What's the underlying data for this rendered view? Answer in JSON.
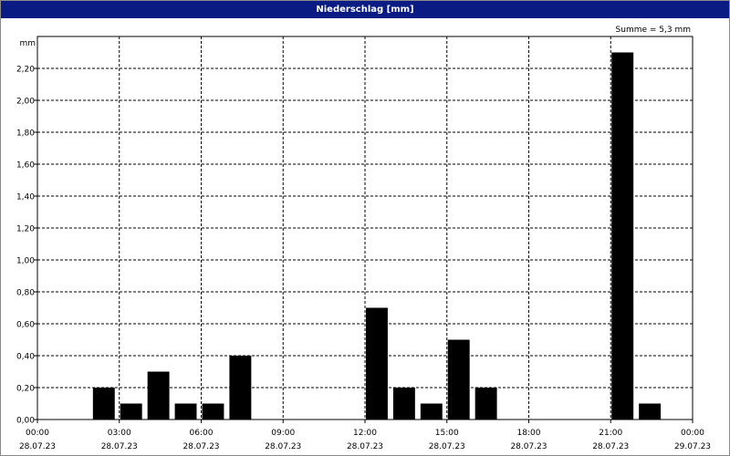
{
  "window": {
    "title": "Niederschlag [mm]"
  },
  "chart_data": {
    "type": "bar",
    "title": "Niederschlag [mm]",
    "annotation": "Summe = 5,3 mm",
    "ylabel": "mm",
    "xlabel": "",
    "ylim": [
      0,
      2.4
    ],
    "xlim": [
      "28.07.23 00:00",
      "29.07.23 00:00"
    ],
    "grid": true,
    "y_ticks": [
      "0,00",
      "0,20",
      "0,40",
      "0,60",
      "0,80",
      "1,00",
      "1,20",
      "1,40",
      "1,60",
      "1,80",
      "2,00",
      "2,20"
    ],
    "y_tick_values": [
      0,
      0.2,
      0.4,
      0.6,
      0.8,
      1.0,
      1.2,
      1.4,
      1.6,
      1.8,
      2.0,
      2.2
    ],
    "x_ticks": [
      {
        "time": "00:00",
        "date": "28.07.23"
      },
      {
        "time": "03:00",
        "date": "28.07.23"
      },
      {
        "time": "06:00",
        "date": "28.07.23"
      },
      {
        "time": "09:00",
        "date": "28.07.23"
      },
      {
        "time": "12:00",
        "date": "28.07.23"
      },
      {
        "time": "15:00",
        "date": "28.07.23"
      },
      {
        "time": "18:00",
        "date": "28.07.23"
      },
      {
        "time": "21:00",
        "date": "28.07.23"
      },
      {
        "time": "00:00",
        "date": "29.07.23"
      }
    ],
    "bar_hours": [
      "02:00-03:00",
      "03:00-04:00",
      "04:00-05:00",
      "05:00-06:00",
      "06:00-07:00",
      "07:00-08:00",
      "12:00-13:00",
      "13:00-14:00",
      "14:00-15:00",
      "15:00-16:00",
      "16:00-17:00",
      "21:00-22:00",
      "22:00-23:00"
    ],
    "values": [
      0.2,
      0.1,
      0.3,
      0.1,
      0.1,
      0.4,
      0.7,
      0.2,
      0.1,
      0.5,
      0.2,
      2.3,
      0.1
    ],
    "colors": {
      "bar": "#000000",
      "titlebar": "#0a1c84",
      "grid": "#000000"
    }
  }
}
